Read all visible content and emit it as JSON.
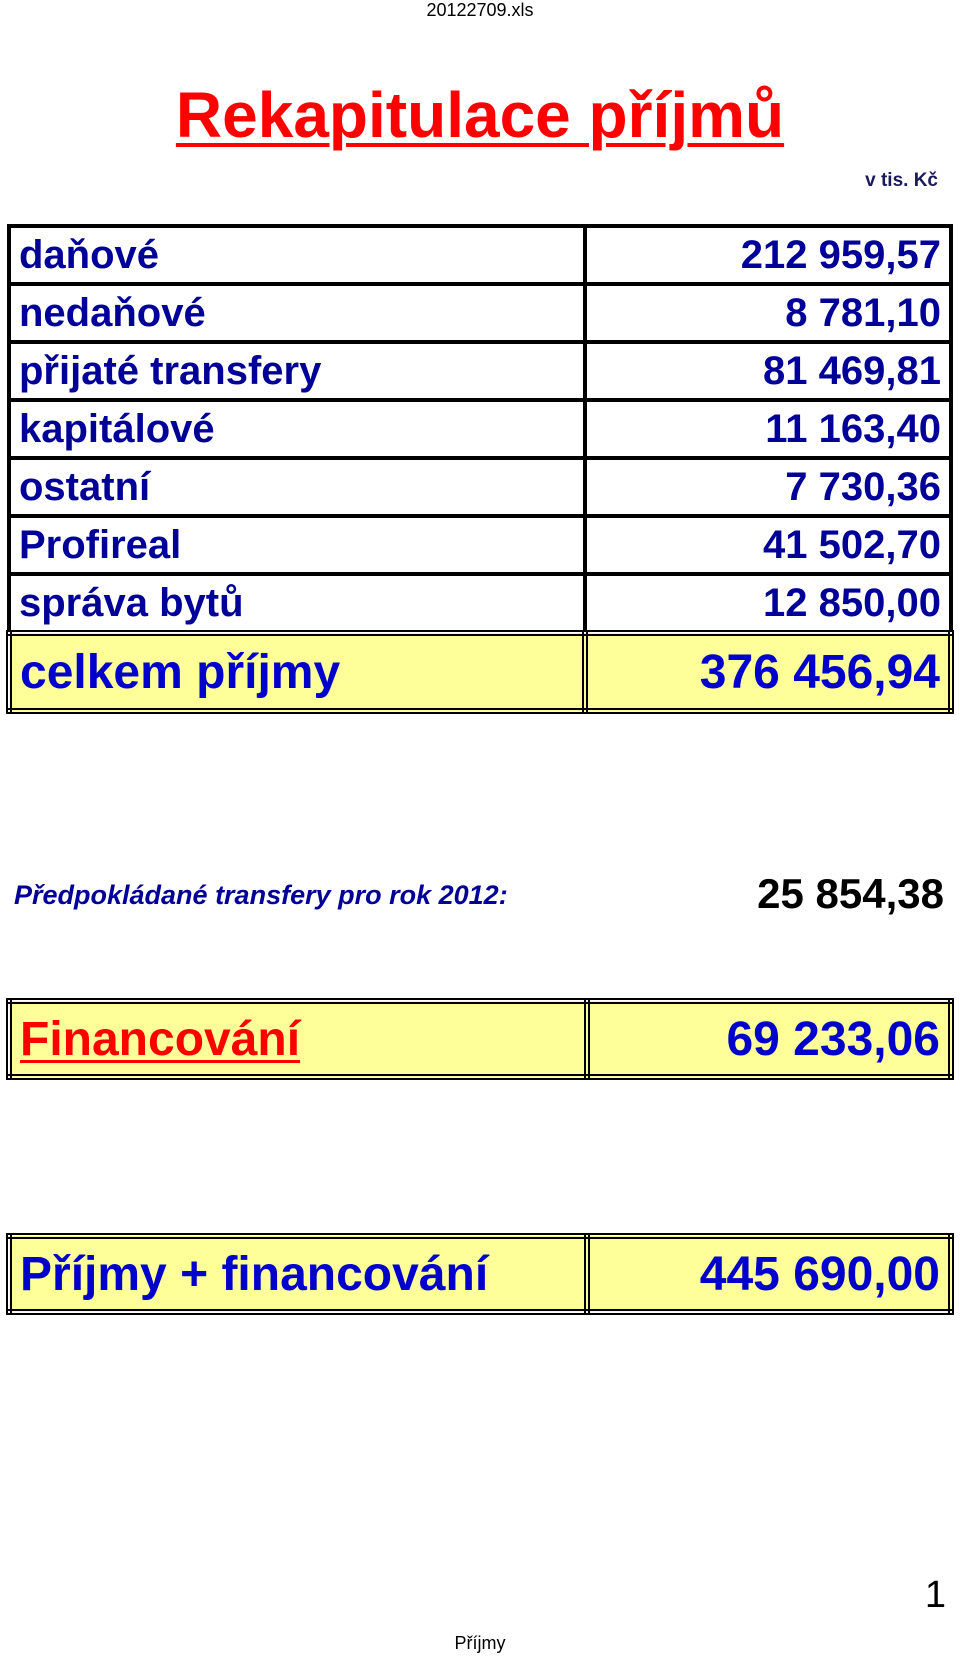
{
  "header": {
    "filename": "20122709.xls"
  },
  "title": "Rekapitulace příjmů",
  "unit": "v tis. Kč",
  "revenue": {
    "rows": [
      {
        "label": "daňové",
        "value": "212 959,57"
      },
      {
        "label": "nedaňové",
        "value": "8 781,10"
      },
      {
        "label": "přijaté transfery",
        "value": "81 469,81"
      },
      {
        "label": "kapitálové",
        "value": "11 163,40"
      },
      {
        "label": "ostatní",
        "value": "7 730,36"
      },
      {
        "label": "Profireal",
        "value": "41 502,70"
      },
      {
        "label": "správa bytů",
        "value": "12 850,00"
      }
    ],
    "total": {
      "label": "celkem příjmy",
      "value": "376 456,94"
    }
  },
  "forecast": {
    "label": "Předpokládané transfery pro rok 2012:",
    "value": "25 854,38"
  },
  "financing": {
    "label": "Financování",
    "value": "69 233,06"
  },
  "grand_total": {
    "label": "Příjmy + financování",
    "value": "445 690,00"
  },
  "footer": {
    "page_number": "1",
    "sheet_name": "Příjmy"
  },
  "colors": {
    "title": "#ff0000",
    "text": "#000099",
    "highlight": "#ffff99"
  }
}
